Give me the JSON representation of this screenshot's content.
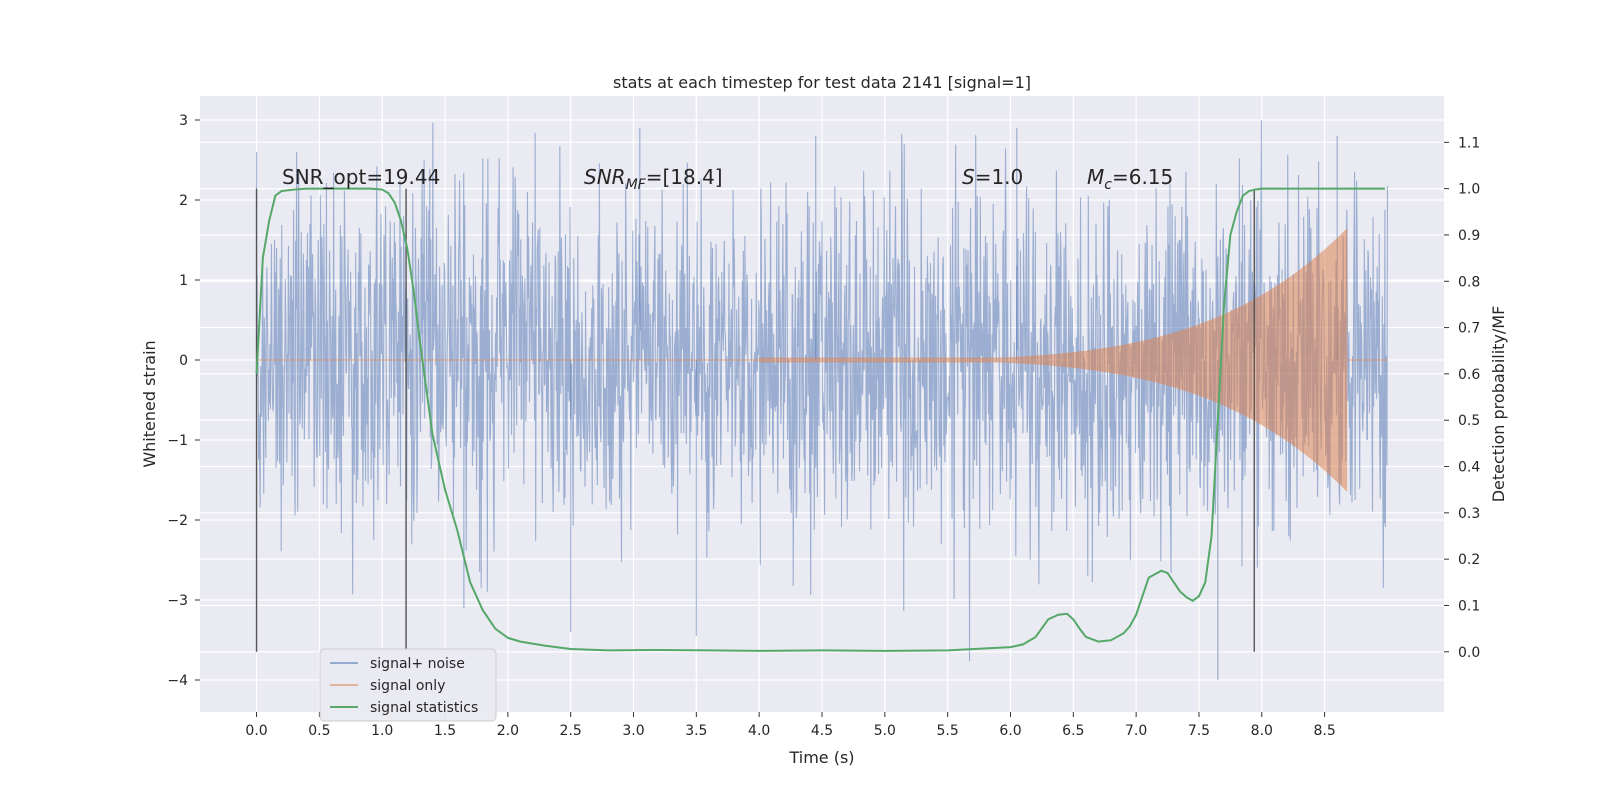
{
  "chart_data": {
    "type": "line",
    "title": "stats at each timestep for test data 2141 [signal=1]",
    "xlabel": "Time (s)",
    "ylabel": "Whitened strain",
    "y2label": "Detection probability/MF",
    "xlim": [
      -0.45,
      9.45
    ],
    "ylim": [
      -4.4,
      3.3
    ],
    "y2lim": [
      -0.13,
      1.2
    ],
    "x_ticks": [
      0.0,
      0.5,
      1.0,
      1.5,
      2.0,
      2.5,
      3.0,
      3.5,
      4.0,
      4.5,
      5.0,
      5.5,
      6.0,
      6.5,
      7.0,
      7.5,
      8.0,
      8.5
    ],
    "x_tick_labels": [
      "0.0",
      "0.5",
      "1.0",
      "1.5",
      "2.0",
      "2.5",
      "3.0",
      "3.5",
      "4.0",
      "4.5",
      "5.0",
      "5.5",
      "6.0",
      "6.5",
      "7.0",
      "7.5",
      "8.0",
      "8.5"
    ],
    "y_ticks": [
      3,
      2,
      1,
      0,
      -1,
      -2,
      -3,
      -4
    ],
    "y_tick_labels": [
      "3",
      "2",
      "1",
      "0",
      "−1",
      "−2",
      "−3",
      "−4"
    ],
    "y2_ticks": [
      1.1,
      1.0,
      0.9,
      0.8,
      0.7,
      0.6,
      0.5,
      0.4,
      0.3,
      0.2,
      0.1,
      0.0
    ],
    "y2_tick_labels": [
      "1.1",
      "1.0",
      "0.9",
      "0.8",
      "0.7",
      "0.6",
      "0.5",
      "0.4",
      "0.3",
      "0.2",
      "0.1",
      "0.0"
    ],
    "grid": true,
    "legend": {
      "location": "lower-left",
      "entries": [
        {
          "label": "signal+ noise",
          "color": "#4c72b0"
        },
        {
          "label": "signal only",
          "color": "#dd8452"
        },
        {
          "label": "signal statistics",
          "color": "#55a868"
        }
      ]
    },
    "annotations": {
      "snr_opt": "SNR_opt=19.44",
      "snr_mf_main": "SNR",
      "snr_mf_sub": "MF",
      "snr_mf_rest": "=[18.4]",
      "s_main": "S",
      "s_rest": "=1.0",
      "mc_main": "M",
      "mc_sub": "c",
      "mc_rest": "=6.15"
    },
    "vertical_markers_s": [
      0.0,
      1.19,
      7.94
    ],
    "series": [
      {
        "name": "signal+ noise",
        "color": "#4c72b0",
        "t_range": [
          0.0,
          9.0
        ],
        "typical_amplitude": 1.1,
        "min": -4.0,
        "max": 3.0
      },
      {
        "name": "signal only",
        "color": "#dd8452",
        "chirp_start_s": 4.0,
        "merger_s": 8.68,
        "peak_positive": 1.65,
        "peak_negative": -1.65
      },
      {
        "name": "signal statistics",
        "color": "#55a868",
        "axis": "right",
        "t": [
          0.0,
          0.05,
          0.1,
          0.15,
          0.2,
          0.3,
          0.4,
          0.5,
          0.6,
          0.7,
          0.8,
          0.9,
          1.0,
          1.05,
          1.1,
          1.15,
          1.2,
          1.25,
          1.3,
          1.35,
          1.4,
          1.5,
          1.6,
          1.7,
          1.8,
          1.9,
          2.0,
          2.1,
          2.3,
          2.5,
          2.8,
          3.2,
          3.6,
          4.0,
          4.5,
          5.0,
          5.5,
          6.0,
          6.1,
          6.2,
          6.3,
          6.38,
          6.45,
          6.5,
          6.55,
          6.6,
          6.7,
          6.8,
          6.9,
          6.95,
          7.0,
          7.05,
          7.1,
          7.2,
          7.25,
          7.3,
          7.35,
          7.4,
          7.45,
          7.5,
          7.55,
          7.6,
          7.65,
          7.7,
          7.75,
          7.8,
          7.85,
          7.9,
          7.95,
          8.0,
          8.05,
          8.1,
          8.2,
          8.4,
          8.6,
          8.8,
          8.98
        ],
        "values": [
          0.6,
          0.85,
          0.93,
          0.985,
          0.995,
          0.998,
          1.0,
          1.0,
          1.0,
          1.0,
          1.0,
          1.0,
          0.998,
          0.99,
          0.97,
          0.93,
          0.87,
          0.78,
          0.67,
          0.57,
          0.47,
          0.35,
          0.26,
          0.15,
          0.09,
          0.05,
          0.03,
          0.022,
          0.013,
          0.006,
          0.003,
          0.004,
          0.003,
          0.002,
          0.003,
          0.002,
          0.003,
          0.01,
          0.016,
          0.032,
          0.07,
          0.08,
          0.082,
          0.07,
          0.05,
          0.032,
          0.022,
          0.025,
          0.04,
          0.055,
          0.08,
          0.12,
          0.16,
          0.175,
          0.17,
          0.15,
          0.13,
          0.118,
          0.11,
          0.12,
          0.15,
          0.25,
          0.5,
          0.75,
          0.9,
          0.95,
          0.985,
          0.995,
          0.998,
          1.0,
          1.0,
          1.0,
          1.0,
          1.0,
          1.0,
          1.0,
          1.0
        ]
      }
    ]
  }
}
